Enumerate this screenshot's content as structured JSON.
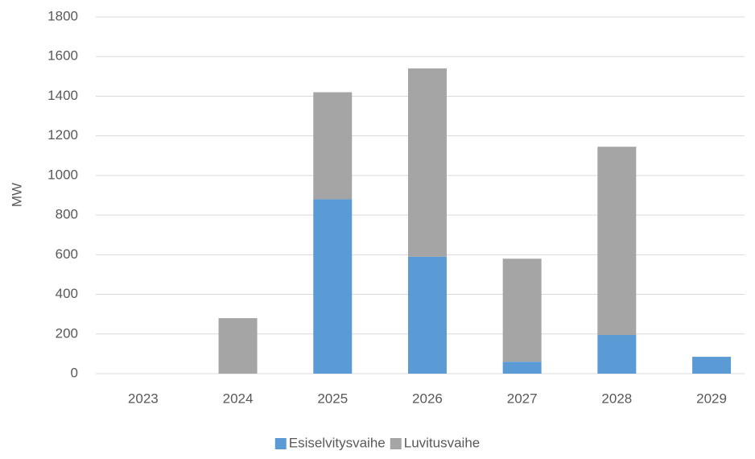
{
  "chart_data": {
    "type": "bar",
    "stacked": true,
    "y_label": "MW",
    "categories": [
      "2023",
      "2024",
      "2025",
      "2026",
      "2027",
      "2028",
      "2029"
    ],
    "series": [
      {
        "name": "Esiselvitysvaihe",
        "color": "#5b9bd5",
        "values": [
          0,
          0,
          880,
          590,
          60,
          195,
          85
        ]
      },
      {
        "name": "Luvitusvaihe",
        "color": "#a5a5a5",
        "values": [
          0,
          280,
          540,
          950,
          520,
          950,
          0
        ]
      }
    ],
    "ylim": [
      0,
      1800
    ],
    "yticks": [
      0,
      200,
      400,
      600,
      800,
      1000,
      1200,
      1400,
      1600,
      1800
    ],
    "grid": true,
    "legend": "bottom"
  }
}
